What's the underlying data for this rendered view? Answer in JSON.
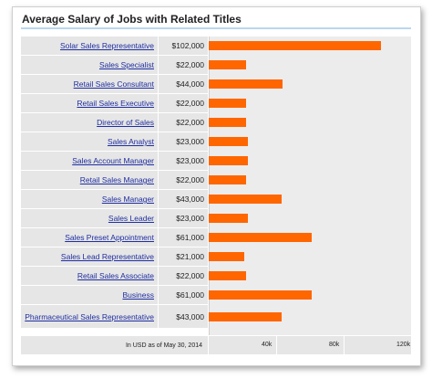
{
  "title": "Average Salary of Jobs with Related Titles",
  "footnote": "In USD as of May 30, 2014",
  "colors": {
    "bar": "#ff6600",
    "link": "#1f2ea0",
    "label_bg": "#e6e6e6"
  },
  "chart_data": {
    "type": "bar",
    "orientation": "horizontal",
    "title": "Average Salary of Jobs with Related Titles",
    "categories": [
      "Solar Sales Representative",
      "Sales Specialist",
      "Retail Sales Consultant",
      "Retail Sales Executive",
      "Director of Sales",
      "Sales Analyst",
      "Sales Account Manager",
      "Retail Sales Manager",
      "Sales Manager",
      "Sales Leader",
      "Sales Preset Appointment",
      "Sales Lead Representative",
      "Retail Sales Associate",
      "Business",
      "Pharmaceutical Sales Representative"
    ],
    "values": [
      102000,
      22000,
      44000,
      22000,
      22000,
      23000,
      23000,
      22000,
      43000,
      23000,
      61000,
      21000,
      22000,
      61000,
      43000
    ],
    "value_labels": [
      "$102,000",
      "$22,000",
      "$44,000",
      "$22,000",
      "$22,000",
      "$23,000",
      "$23,000",
      "$22,000",
      "$43,000",
      "$23,000",
      "$61,000",
      "$21,000",
      "$22,000",
      "$61,000",
      "$43,000"
    ],
    "xticks": [
      "40k",
      "80k",
      "120k"
    ],
    "xlim": [
      0,
      120000
    ]
  }
}
